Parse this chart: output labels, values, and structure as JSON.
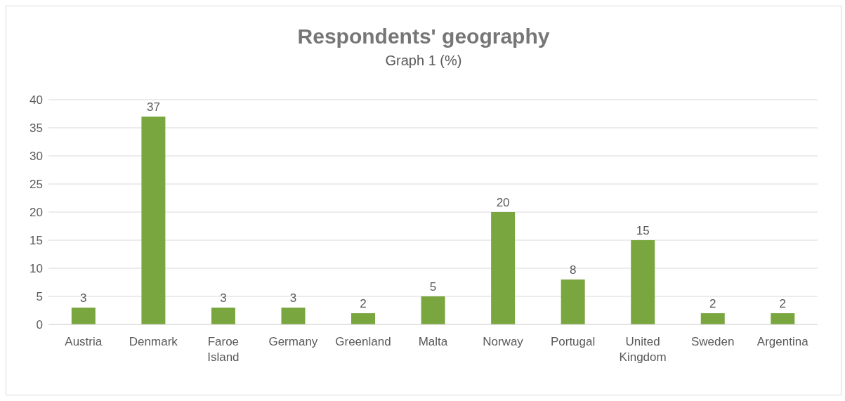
{
  "chart_data": {
    "type": "bar",
    "title": "Respondents' geography",
    "subtitle": "Graph 1 (%)",
    "categories": [
      "Austria",
      "Denmark",
      "Faroe Island",
      "Germany",
      "Greenland",
      "Malta",
      "Norway",
      "Portugal",
      "United Kingdom",
      "Sweden",
      "Argentina"
    ],
    "values": [
      3,
      37,
      3,
      3,
      2,
      5,
      20,
      8,
      15,
      2,
      2
    ],
    "color": "#7aa640",
    "ylim": [
      0,
      40
    ],
    "yticks": [
      0,
      5,
      10,
      15,
      20,
      25,
      30,
      35,
      40
    ],
    "grid": "y",
    "data_labels": true,
    "legend": false
  }
}
